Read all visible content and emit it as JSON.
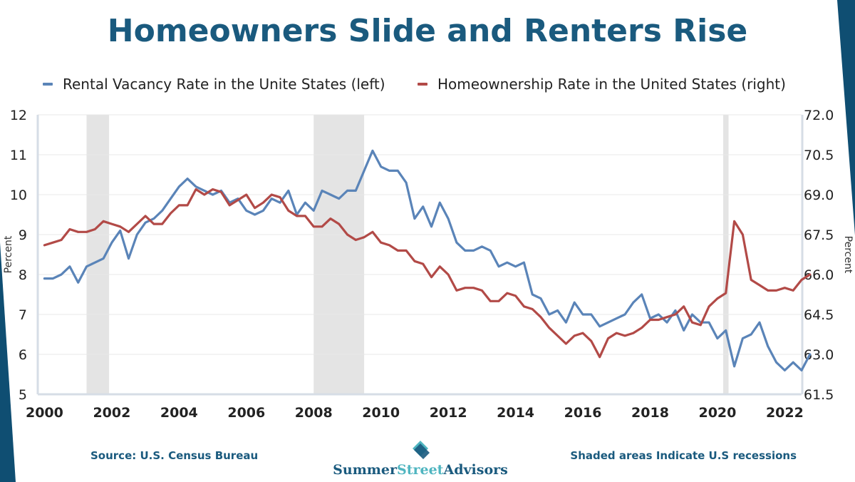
{
  "title": "Homeowners Slide and Renters Rise",
  "colors": {
    "title": "#1a5a7e",
    "rental": "#5a84b8",
    "homeownership": "#b24a47",
    "recession": "#e4e4e4",
    "edge": "#0f4e72"
  },
  "footer": {
    "source": "Source: U.S. Census Bureau",
    "note": "Shaded areas Indicate U.S recessions",
    "brand_part1": "Summer",
    "brand_part2": "Street",
    "brand_part3": "Advisors"
  },
  "chart_data": {
    "type": "line",
    "title": "Homeowners Slide and Renters Rise",
    "xlim": [
      1999.8,
      2022.5
    ],
    "x_ticks": [
      2000,
      2002,
      2004,
      2006,
      2008,
      2010,
      2012,
      2014,
      2016,
      2018,
      2020,
      2022
    ],
    "y_left": {
      "label": "Percent",
      "range": [
        5,
        12
      ],
      "ticks": [
        "5",
        "6",
        "7",
        "8",
        "9",
        "10",
        "11",
        "12"
      ]
    },
    "y_right": {
      "label": "Percent",
      "range": [
        61.5,
        72.0
      ],
      "ticks": [
        "61.5",
        "63.0",
        "64.5",
        "66.0",
        "67.5",
        "69.0",
        "70.5",
        "72.0"
      ]
    },
    "recessions": [
      [
        2001.25,
        2001.92
      ],
      [
        2008.0,
        2009.5
      ],
      [
        2020.17,
        2020.33
      ]
    ],
    "legend_position": "top",
    "series": [
      {
        "name": "Rental Vacancy Rate in the Unite States (left)",
        "axis": "left",
        "start": 2000.0,
        "step": 0.25,
        "values": [
          7.9,
          7.9,
          8.0,
          8.2,
          7.8,
          8.2,
          8.3,
          8.4,
          8.8,
          9.1,
          8.4,
          9.0,
          9.3,
          9.4,
          9.6,
          9.9,
          10.2,
          10.4,
          10.2,
          10.1,
          10.0,
          10.1,
          9.8,
          9.9,
          9.6,
          9.5,
          9.6,
          9.9,
          9.8,
          10.1,
          9.5,
          9.8,
          9.6,
          10.1,
          10.0,
          9.9,
          10.1,
          10.1,
          10.6,
          11.1,
          10.7,
          10.6,
          10.6,
          10.3,
          9.4,
          9.7,
          9.2,
          9.8,
          9.4,
          8.8,
          8.6,
          8.6,
          8.7,
          8.6,
          8.2,
          8.3,
          8.2,
          8.3,
          7.5,
          7.4,
          7.0,
          7.1,
          6.8,
          7.3,
          7.0,
          7.0,
          6.7,
          6.8,
          6.9,
          7.0,
          7.3,
          7.5,
          6.9,
          7.0,
          6.8,
          7.1,
          6.6,
          7.0,
          6.8,
          6.8,
          6.4,
          6.6,
          5.7,
          6.4,
          6.5,
          6.8,
          6.2,
          5.8,
          5.6,
          5.8,
          5.6,
          6.0
        ]
      },
      {
        "name": "Homeownership Rate in the United States (right)",
        "axis": "right",
        "start": 2000.0,
        "step": 0.25,
        "values": [
          67.1,
          67.2,
          67.3,
          67.7,
          67.6,
          67.6,
          67.7,
          68.0,
          67.9,
          67.8,
          67.6,
          67.9,
          68.2,
          67.9,
          67.9,
          68.3,
          68.6,
          68.6,
          69.2,
          69.0,
          69.2,
          69.1,
          68.6,
          68.8,
          69.0,
          68.5,
          68.7,
          69.0,
          68.9,
          68.4,
          68.2,
          68.2,
          67.8,
          67.8,
          68.1,
          67.9,
          67.5,
          67.3,
          67.4,
          67.6,
          67.2,
          67.1,
          66.9,
          66.9,
          66.5,
          66.4,
          65.9,
          66.3,
          66.0,
          65.4,
          65.5,
          65.5,
          65.4,
          65.0,
          65.0,
          65.3,
          65.2,
          64.8,
          64.7,
          64.4,
          64.0,
          63.7,
          63.4,
          63.7,
          63.8,
          63.5,
          62.9,
          63.6,
          63.8,
          63.7,
          63.8,
          64.0,
          64.3,
          64.3,
          64.4,
          64.5,
          64.8,
          64.2,
          64.1,
          64.8,
          65.1,
          65.3,
          68.0,
          67.5,
          65.8,
          65.6,
          65.4,
          65.4,
          65.5,
          65.4,
          65.8,
          66.0
        ]
      }
    ]
  }
}
